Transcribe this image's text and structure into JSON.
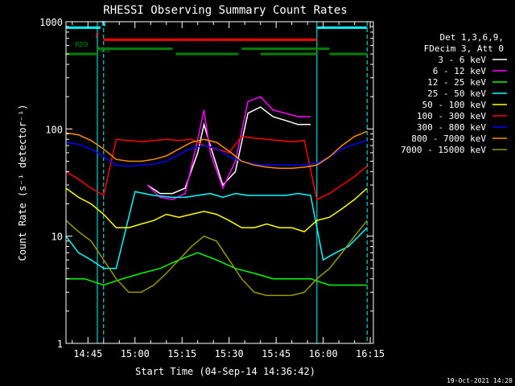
{
  "chart_data": {
    "type": "line",
    "title": "RHESSI Observing Summary Count Rates",
    "xlabel": "Start Time (04-Sep-14 14:36:42)",
    "ylabel": "Count Rate (s⁻¹ detector⁻¹)",
    "footer": "19-Oct-2021 14:28",
    "y_scale": "log",
    "ylim": [
      1,
      1000
    ],
    "xlim": [
      "14:38",
      "16:16"
    ],
    "yticks": [
      {
        "value": 1,
        "label": "1"
      },
      {
        "value": 10,
        "label": "10"
      },
      {
        "value": 100,
        "label": "100"
      },
      {
        "value": 1000,
        "label": "1000"
      }
    ],
    "xticks": [
      {
        "value": "14:45",
        "label": "14:45"
      },
      {
        "value": "15:00",
        "label": "15:00"
      },
      {
        "value": "15:15",
        "label": "15:15"
      },
      {
        "value": "15:30",
        "label": "15:30"
      },
      {
        "value": "15:45",
        "label": "15:45"
      },
      {
        "value": "16:00",
        "label": "16:00"
      },
      {
        "value": "16:15",
        "label": "16:15"
      }
    ],
    "legend_header": [
      "Det 1,3,6,9,",
      "FDecim 3, Att 0"
    ],
    "legend_position": "right",
    "grid": false,
    "series": [
      {
        "name": "3 - 6 keV",
        "color": "#ffffff",
        "x": [
          "15:04",
          "15:08",
          "15:12",
          "15:16",
          "15:20",
          "15:22",
          "15:24",
          "15:28",
          "15:32",
          "15:36",
          "15:40",
          "15:44",
          "15:48",
          "15:52",
          "15:56"
        ],
        "y": [
          30,
          25,
          25,
          28,
          60,
          110,
          70,
          30,
          40,
          140,
          160,
          130,
          120,
          110,
          110
        ]
      },
      {
        "name": "6 - 12 keV",
        "color": "#ff00ff",
        "x": [
          "15:04",
          "15:08",
          "15:12",
          "15:16",
          "15:20",
          "15:22",
          "15:24",
          "15:28",
          "15:32",
          "15:36",
          "15:40",
          "15:44",
          "15:48",
          "15:52",
          "15:56"
        ],
        "y": [
          30,
          23,
          22,
          25,
          80,
          150,
          60,
          28,
          50,
          180,
          200,
          150,
          140,
          130,
          130
        ]
      },
      {
        "name": "12 - 25 keV",
        "color": "#00ff00",
        "x": [
          "14:38",
          "14:44",
          "14:50",
          "14:56",
          "15:02",
          "15:08",
          "15:14",
          "15:20",
          "15:26",
          "15:32",
          "15:38",
          "15:44",
          "15:50",
          "15:56",
          "16:02",
          "16:08",
          "16:14"
        ],
        "y": [
          4,
          4,
          3.5,
          4,
          4.5,
          5,
          6,
          7,
          6,
          5,
          4.5,
          4,
          4,
          4,
          3.5,
          3.5,
          3.5
        ]
      },
      {
        "name": "25 - 50 keV",
        "color": "#00ffff",
        "x": [
          "14:38",
          "14:42",
          "14:46",
          "14:50",
          "14:54",
          "15:00",
          "15:06",
          "15:12",
          "15:16",
          "15:20",
          "15:24",
          "15:28",
          "15:32",
          "15:36",
          "15:40",
          "15:44",
          "15:48",
          "15:52",
          "15:56",
          "16:00",
          "16:04",
          "16:08",
          "16:14"
        ],
        "y": [
          10,
          7,
          6,
          5,
          5,
          26,
          24,
          23,
          23,
          24,
          25,
          23,
          25,
          24,
          24,
          24,
          24,
          25,
          24,
          6,
          7,
          8,
          12
        ]
      },
      {
        "name": "50 - 100 keV",
        "color": "#ffff00",
        "x": [
          "14:38",
          "14:42",
          "14:46",
          "14:50",
          "14:54",
          "14:58",
          "15:02",
          "15:06",
          "15:10",
          "15:14",
          "15:18",
          "15:22",
          "15:26",
          "15:30",
          "15:34",
          "15:38",
          "15:42",
          "15:46",
          "15:50",
          "15:54",
          "15:58",
          "16:02",
          "16:06",
          "16:10",
          "16:14"
        ],
        "y": [
          28,
          23,
          20,
          16,
          12,
          12,
          13,
          14,
          16,
          15,
          16,
          17,
          16,
          14,
          12,
          12,
          13,
          12,
          12,
          11,
          14,
          15,
          18,
          22,
          28
        ]
      },
      {
        "name": "100 - 300 keV",
        "color": "#ff0000",
        "x": [
          "14:38",
          "14:42",
          "14:46",
          "14:50",
          "14:54",
          "14:58",
          "15:02",
          "15:06",
          "15:10",
          "15:14",
          "15:18",
          "15:22",
          "15:26",
          "15:30",
          "15:34",
          "15:38",
          "15:42",
          "15:46",
          "15:50",
          "15:54",
          "15:58",
          "16:02",
          "16:06",
          "16:10",
          "16:14"
        ],
        "y": [
          40,
          34,
          28,
          24,
          80,
          78,
          76,
          78,
          80,
          78,
          80,
          70,
          65,
          60,
          85,
          82,
          80,
          78,
          76,
          78,
          22,
          25,
          30,
          36,
          45
        ]
      },
      {
        "name": "300 - 800 keV",
        "color": "#0000ff",
        "x": [
          "14:38",
          "14:42",
          "14:46",
          "14:50",
          "14:54",
          "14:58",
          "15:02",
          "15:06",
          "15:10",
          "15:14",
          "15:18",
          "15:22",
          "15:26",
          "15:30",
          "15:34",
          "15:38",
          "15:42",
          "15:46",
          "15:50",
          "15:54",
          "15:58",
          "16:02",
          "16:06",
          "16:10",
          "16:14"
        ],
        "y": [
          75,
          72,
          65,
          55,
          46,
          45,
          46,
          47,
          50,
          58,
          66,
          70,
          66,
          55,
          50,
          47,
          46,
          46,
          46,
          46,
          48,
          55,
          65,
          72,
          78
        ]
      },
      {
        "name": "800 - 7000 keV",
        "color": "#ff8c00",
        "x": [
          "14:38",
          "14:42",
          "14:46",
          "14:50",
          "14:54",
          "14:58",
          "15:02",
          "15:06",
          "15:10",
          "15:14",
          "15:18",
          "15:22",
          "15:26",
          "15:30",
          "15:34",
          "15:38",
          "15:42",
          "15:46",
          "15:50",
          "15:54",
          "15:58",
          "16:02",
          "16:06",
          "16:10",
          "16:14"
        ],
        "y": [
          92,
          88,
          78,
          65,
          52,
          50,
          50,
          52,
          56,
          65,
          75,
          80,
          75,
          62,
          50,
          46,
          44,
          43,
          43,
          44,
          46,
          55,
          70,
          85,
          95
        ]
      },
      {
        "name": "7000 - 15000 keV",
        "color": "#999900",
        "x": [
          "14:38",
          "14:42",
          "14:46",
          "14:50",
          "14:54",
          "14:58",
          "15:02",
          "15:06",
          "15:10",
          "15:14",
          "15:18",
          "15:22",
          "15:26",
          "15:30",
          "15:34",
          "15:38",
          "15:42",
          "15:46",
          "15:50",
          "15:54",
          "15:58",
          "16:02",
          "16:06",
          "16:10",
          "16:14"
        ],
        "y": [
          14,
          11,
          9,
          6,
          4,
          3,
          3,
          3.5,
          4.5,
          6,
          8,
          10,
          9,
          6,
          4,
          3,
          2.8,
          2.8,
          2.8,
          3,
          4,
          5,
          7,
          10,
          14
        ]
      }
    ],
    "state_bars": [
      {
        "label": "N",
        "color": "#00ffff",
        "level": 880,
        "segments": [
          [
            "14:38",
            "14:49"
          ],
          [
            "15:58",
            "16:14"
          ]
        ],
        "label_at": "14:50"
      },
      {
        "label": "F",
        "color": "#ff0000",
        "level": 680,
        "segments": [
          [
            "14:50",
            "15:58"
          ]
        ],
        "label_at": "14:48"
      },
      {
        "label": "RD0",
        "color": "#008000",
        "level": 560,
        "segments": [
          [
            "14:48",
            "15:12"
          ],
          [
            "15:34",
            "16:02"
          ]
        ],
        "label_at": "14:43"
      },
      {
        "label": "RD6",
        "color": "#008000",
        "level": 500,
        "segments": [
          [
            "14:38",
            "14:48"
          ],
          [
            "15:13",
            "15:33"
          ],
          [
            "15:40",
            "15:58"
          ],
          [
            "16:02",
            "16:14"
          ]
        ],
        "label_at": "14:50"
      }
    ],
    "vertical_markers": [
      {
        "x": "14:38",
        "color": "#00ffff",
        "style": "solid"
      },
      {
        "x": "14:48",
        "color": "#00ffff",
        "style": "solid"
      },
      {
        "x": "14:50",
        "color": "#00ffff",
        "style": "dashed"
      },
      {
        "x": "15:58",
        "color": "#00ffff",
        "style": "solid"
      },
      {
        "x": "16:14",
        "color": "#00ffff",
        "style": "dashed"
      }
    ]
  }
}
